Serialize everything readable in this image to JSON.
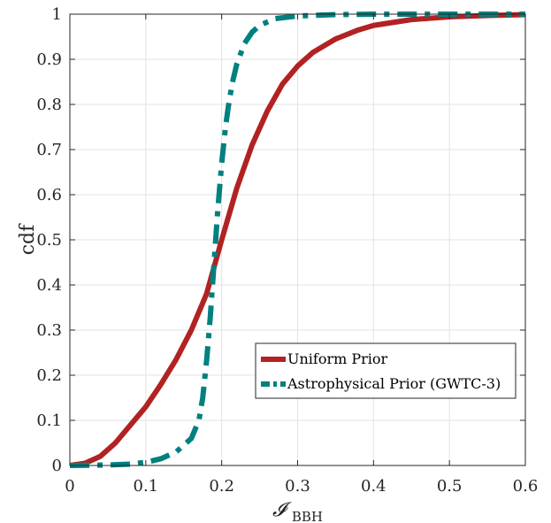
{
  "chart_data": {
    "type": "line",
    "title": "",
    "xlabel": "𝓘",
    "xlabel_sub": "BBH",
    "ylabel": "cdf",
    "xlim": [
      0,
      0.6
    ],
    "ylim": [
      0,
      1
    ],
    "x_ticks": [
      "0",
      "0.1",
      "0.2",
      "0.3",
      "0.4",
      "0.5",
      "0.6"
    ],
    "y_ticks": [
      "0",
      "0.1",
      "0.2",
      "0.3",
      "0.4",
      "0.5",
      "0.6",
      "0.7",
      "0.8",
      "0.9",
      "1"
    ],
    "grid": true,
    "legend_position": "bottom-right",
    "series": [
      {
        "name": "Uniform Prior",
        "color": "#b22222",
        "style": "solid",
        "x": [
          0.0,
          0.02,
          0.04,
          0.06,
          0.08,
          0.1,
          0.12,
          0.14,
          0.16,
          0.18,
          0.2,
          0.22,
          0.24,
          0.26,
          0.28,
          0.3,
          0.32,
          0.35,
          0.38,
          0.4,
          0.45,
          0.5,
          0.55,
          0.6
        ],
        "y": [
          0.0,
          0.005,
          0.02,
          0.05,
          0.09,
          0.13,
          0.18,
          0.235,
          0.3,
          0.38,
          0.5,
          0.615,
          0.71,
          0.785,
          0.845,
          0.885,
          0.915,
          0.945,
          0.965,
          0.975,
          0.988,
          0.994,
          0.997,
          0.999
        ]
      },
      {
        "name": "Astrophysical Prior (GWTC-3)",
        "color": "#00807f",
        "style": "dashdot",
        "x": [
          0.0,
          0.05,
          0.08,
          0.1,
          0.12,
          0.14,
          0.16,
          0.17,
          0.175,
          0.18,
          0.185,
          0.19,
          0.195,
          0.2,
          0.205,
          0.21,
          0.215,
          0.22,
          0.23,
          0.24,
          0.25,
          0.27,
          0.3,
          0.35,
          0.4,
          0.5,
          0.6
        ],
        "y": [
          0.0,
          0.001,
          0.003,
          0.007,
          0.015,
          0.03,
          0.06,
          0.1,
          0.15,
          0.23,
          0.33,
          0.45,
          0.57,
          0.67,
          0.75,
          0.81,
          0.855,
          0.89,
          0.935,
          0.96,
          0.975,
          0.99,
          0.996,
          0.999,
          1.0,
          1.0,
          1.0
        ]
      }
    ]
  }
}
